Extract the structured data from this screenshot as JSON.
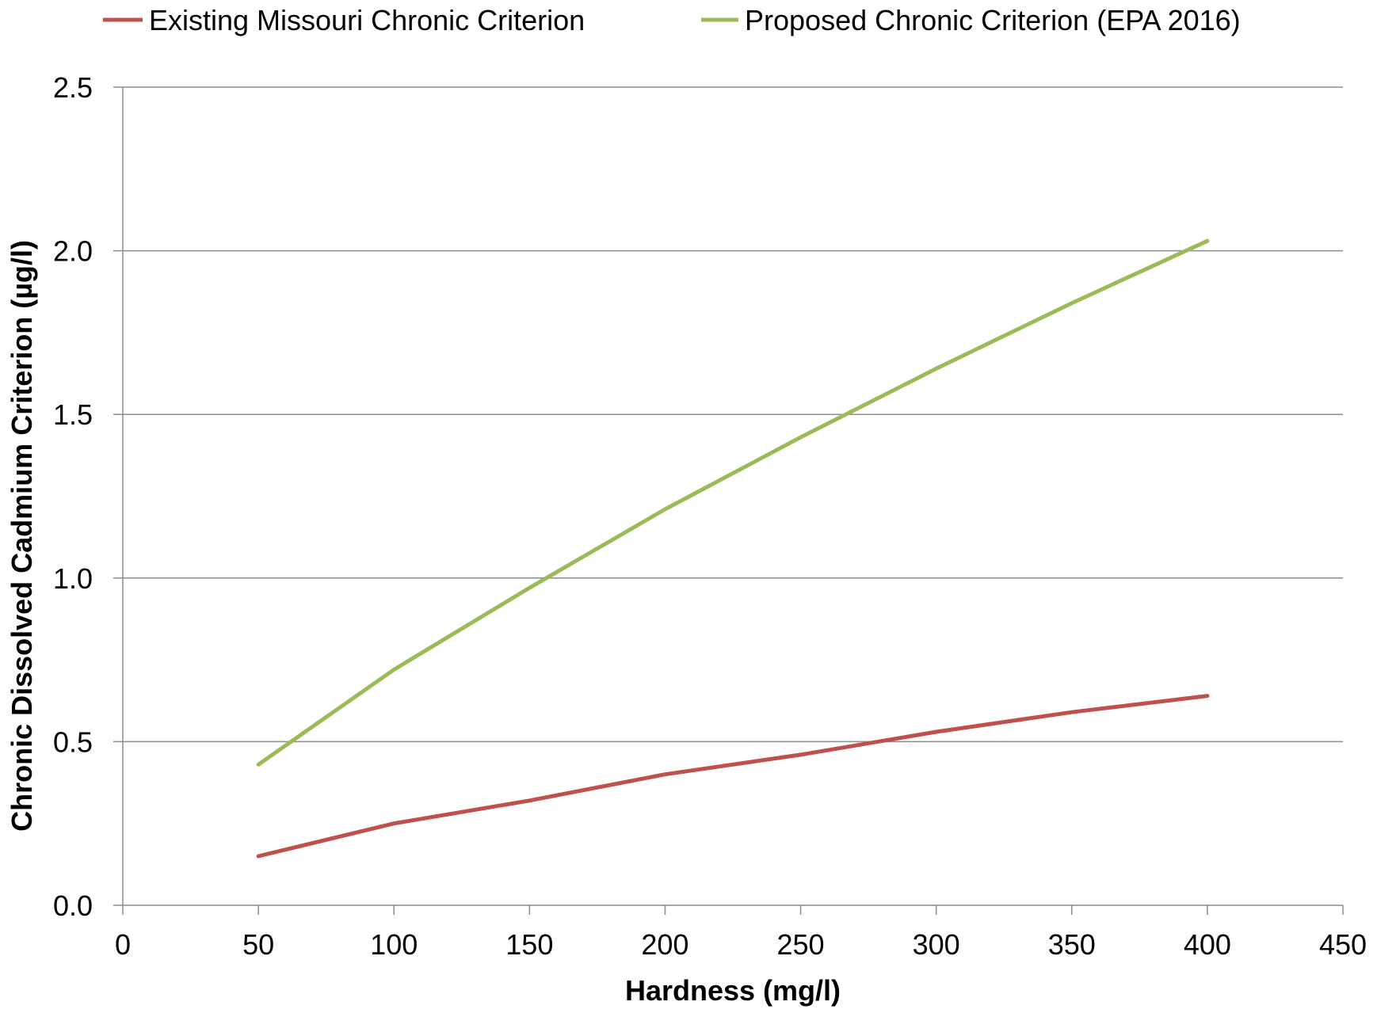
{
  "chart_data": {
    "type": "line",
    "title": "",
    "xlabel": "Hardness (mg/l)",
    "ylabel": "Chronic Dissolved Cadmium Criterion (µg/l)",
    "xlim": [
      0,
      450
    ],
    "ylim": [
      0,
      2.5
    ],
    "xticks": [
      0,
      50,
      100,
      150,
      200,
      250,
      300,
      350,
      400,
      450
    ],
    "xtick_labels": [
      "0",
      "50",
      "100",
      "150",
      "200",
      "250",
      "300",
      "350",
      "400",
      "450"
    ],
    "yticks": [
      0,
      0.5,
      1.0,
      1.5,
      2.0,
      2.5
    ],
    "ytick_labels": [
      "0.0",
      "0.5",
      "1.0",
      "1.5",
      "2.0",
      "2.5"
    ],
    "grid": "horizontal",
    "legend_position": "top",
    "x": [
      50,
      100,
      150,
      200,
      250,
      300,
      350,
      400
    ],
    "series": [
      {
        "name": "Existing Missouri Chronic Criterion",
        "color": "#c0504d",
        "values": [
          0.15,
          0.25,
          0.32,
          0.4,
          0.46,
          0.53,
          0.59,
          0.64
        ]
      },
      {
        "name": "Proposed Chronic Criterion (EPA 2016)",
        "color": "#9bbb59",
        "values": [
          0.43,
          0.72,
          0.97,
          1.21,
          1.43,
          1.64,
          1.84,
          2.03
        ]
      }
    ]
  }
}
